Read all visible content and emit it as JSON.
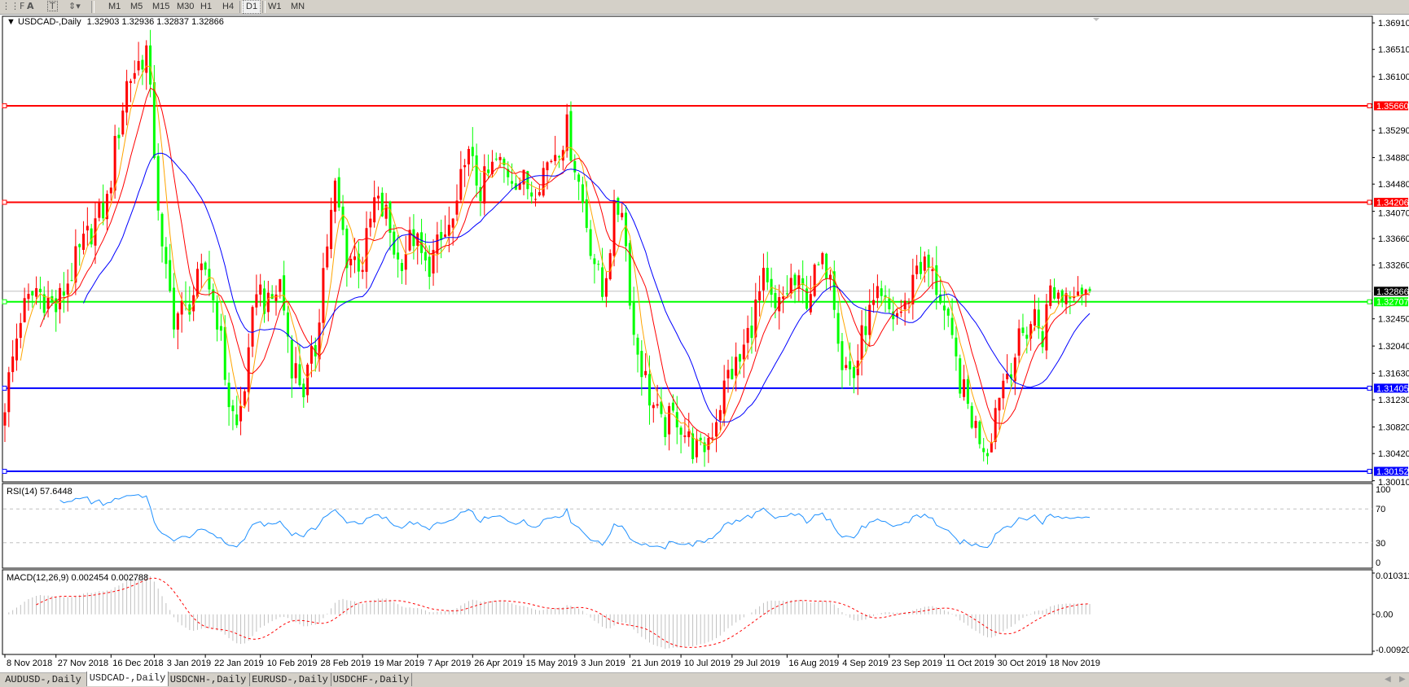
{
  "toolbar": {
    "icons": [
      "period-separator-icon",
      "text-icon",
      "text-label-icon",
      "arrows-icon"
    ],
    "timeframes": [
      "M1",
      "M5",
      "M15",
      "M30",
      "H1",
      "H4",
      "D1",
      "W1",
      "MN"
    ],
    "active_timeframe": "D1"
  },
  "header": {
    "symbol": "USDCAD-,Daily",
    "ohlc": "1.32903 1.32936 1.32837 1.32866"
  },
  "rsi_label": "RSI(14) 57.6448",
  "macd_label": "MACD(12,26,9) 0.002454 0.002788",
  "tabs": [
    "AUDUSD-,Daily",
    "USDCAD-,Daily",
    "USDCNH-,Daily",
    "EURUSD-,Daily",
    "USDCHF-,Daily"
  ],
  "active_tab": "USDCAD-,Daily",
  "chart_data": {
    "type": "candlestick",
    "symbol": "USDCAD",
    "timeframe": "Daily",
    "ylim": [
      1.29993,
      1.37009
    ],
    "y_ticks": [
      "1.36910",
      "1.36510",
      "1.36100",
      "1.35290",
      "1.34880",
      "1.34480",
      "1.34070",
      "1.33660",
      "1.33260",
      "1.32450",
      "1.32040",
      "1.31630",
      "1.31230",
      "1.30820",
      "1.30420",
      "1.30010"
    ],
    "x_ticks": [
      {
        "date": "2018-11-08",
        "label": "8 Nov 2018"
      },
      {
        "date": "2018-11-27",
        "label": "27 Nov 2018"
      },
      {
        "date": "2018-12-16",
        "label": "16 Dec 2018"
      },
      {
        "date": "2019-01-03",
        "label": "3 Jan 2019"
      },
      {
        "date": "2019-01-22",
        "label": "22 Jan 2019"
      },
      {
        "date": "2019-02-10",
        "label": "10 Feb 2019"
      },
      {
        "date": "2019-02-28",
        "label": "28 Feb 2019"
      },
      {
        "date": "2019-03-19",
        "label": "19 Mar 2019"
      },
      {
        "date": "2019-04-07",
        "label": "7 Apr 2019"
      },
      {
        "date": "2019-04-26",
        "label": "26 Apr 2019"
      },
      {
        "date": "2019-05-15",
        "label": "15 May 2019"
      },
      {
        "date": "2019-06-03",
        "label": "3 Jun 2019"
      },
      {
        "date": "2019-06-21",
        "label": "21 Jun 2019"
      },
      {
        "date": "2019-07-10",
        "label": "10 Jul 2019"
      },
      {
        "date": "2019-07-29",
        "label": "29 Jul 2019"
      },
      {
        "date": "2019-08-16",
        "label": "16 Aug 2019"
      },
      {
        "date": "2019-09-04",
        "label": "4 Sep 2019"
      },
      {
        "date": "2019-09-23",
        "label": "23 Sep 2019"
      },
      {
        "date": "2019-10-11",
        "label": "11 Oct 2019"
      },
      {
        "date": "2019-10-30",
        "label": "30 Oct 2019"
      },
      {
        "date": "2019-11-18",
        "label": "18 Nov 2019"
      }
    ],
    "close_path": [
      [
        "2018-11-08",
        1.312
      ],
      [
        "2018-11-14",
        1.325
      ],
      [
        "2018-11-20",
        1.329
      ],
      [
        "2018-11-27",
        1.326
      ],
      [
        "2018-12-04",
        1.333
      ],
      [
        "2018-12-10",
        1.338
      ],
      [
        "2018-12-14",
        1.342
      ],
      [
        "2018-12-18",
        1.35
      ],
      [
        "2018-12-21",
        1.36
      ],
      [
        "2018-12-26",
        1.362
      ],
      [
        "2018-12-31",
        1.365
      ],
      [
        "2019-01-03",
        1.35
      ],
      [
        "2019-01-07",
        1.334
      ],
      [
        "2019-01-10",
        1.325
      ],
      [
        "2019-01-15",
        1.326
      ],
      [
        "2019-01-22",
        1.332
      ],
      [
        "2019-01-25",
        1.325
      ],
      [
        "2019-01-30",
        1.312
      ],
      [
        "2019-02-01",
        1.308
      ],
      [
        "2019-02-06",
        1.318
      ],
      [
        "2019-02-08",
        1.33
      ],
      [
        "2019-02-13",
        1.326
      ],
      [
        "2019-02-18",
        1.33
      ],
      [
        "2019-02-21",
        1.318
      ],
      [
        "2019-02-26",
        1.314
      ],
      [
        "2019-03-01",
        1.32
      ],
      [
        "2019-03-05",
        1.332
      ],
      [
        "2019-03-08",
        1.344
      ],
      [
        "2019-03-13",
        1.334
      ],
      [
        "2019-03-19",
        1.333
      ],
      [
        "2019-03-22",
        1.342
      ],
      [
        "2019-03-27",
        1.34
      ],
      [
        "2019-04-01",
        1.333
      ],
      [
        "2019-04-05",
        1.337
      ],
      [
        "2019-04-10",
        1.332
      ],
      [
        "2019-04-16",
        1.336
      ],
      [
        "2019-04-22",
        1.34
      ],
      [
        "2019-04-24",
        1.35
      ],
      [
        "2019-04-30",
        1.344
      ],
      [
        "2019-05-06",
        1.348
      ],
      [
        "2019-05-13",
        1.346
      ],
      [
        "2019-05-17",
        1.344
      ],
      [
        "2019-05-23",
        1.348
      ],
      [
        "2019-05-30",
        1.353
      ],
      [
        "2019-06-03",
        1.348
      ],
      [
        "2019-06-07",
        1.336
      ],
      [
        "2019-06-12",
        1.328
      ],
      [
        "2019-06-17",
        1.34
      ],
      [
        "2019-06-19",
        1.342
      ],
      [
        "2019-06-24",
        1.322
      ],
      [
        "2019-06-28",
        1.313
      ],
      [
        "2019-07-03",
        1.308
      ],
      [
        "2019-07-09",
        1.31
      ],
      [
        "2019-07-12",
        1.306
      ],
      [
        "2019-07-17",
        1.304
      ],
      [
        "2019-07-22",
        1.308
      ],
      [
        "2019-07-26",
        1.316
      ],
      [
        "2019-07-31",
        1.318
      ],
      [
        "2019-08-05",
        1.324
      ],
      [
        "2019-08-08",
        1.33
      ],
      [
        "2019-08-13",
        1.325
      ],
      [
        "2019-08-19",
        1.33
      ],
      [
        "2019-08-23",
        1.328
      ],
      [
        "2019-08-28",
        1.332
      ],
      [
        "2019-09-02",
        1.333
      ],
      [
        "2019-09-05",
        1.318
      ],
      [
        "2019-09-10",
        1.316
      ],
      [
        "2019-09-13",
        1.324
      ],
      [
        "2019-09-18",
        1.327
      ],
      [
        "2019-09-24",
        1.325
      ],
      [
        "2019-09-27",
        1.326
      ],
      [
        "2019-10-02",
        1.333
      ],
      [
        "2019-10-07",
        1.332
      ],
      [
        "2019-10-10",
        1.328
      ],
      [
        "2019-10-15",
        1.32
      ],
      [
        "2019-10-18",
        1.313
      ],
      [
        "2019-10-23",
        1.308
      ],
      [
        "2019-10-28",
        1.305
      ],
      [
        "2019-10-31",
        1.314
      ],
      [
        "2019-11-05",
        1.318
      ],
      [
        "2019-11-08",
        1.322
      ],
      [
        "2019-11-13",
        1.325
      ],
      [
        "2019-11-15",
        1.322
      ],
      [
        "2019-11-19",
        1.329
      ],
      [
        "2019-11-22",
        1.328
      ],
      [
        "2019-11-27",
        1.33
      ],
      [
        "2019-12-03",
        1.32866
      ]
    ],
    "last_bar": {
      "open": 1.32903,
      "high": 1.32936,
      "low": 1.32837,
      "close": 1.32866
    },
    "current_price": {
      "value": "1.32866",
      "color": "#000000"
    },
    "levels": [
      {
        "value": "1.35660",
        "color": "#ff0000"
      },
      {
        "value": "1.34206",
        "color": "#ff0000"
      },
      {
        "value": "1.32707",
        "color": "#00ff00"
      },
      {
        "value": "1.31405",
        "color": "#0000ff"
      },
      {
        "value": "1.30152",
        "color": "#0000ff"
      }
    ],
    "candle_colors": {
      "up": "#ff0000",
      "down": "#00ff00"
    },
    "moving_averages": [
      {
        "period": 5,
        "color": "#ffa500"
      },
      {
        "period": 10,
        "color": "#ff0000"
      },
      {
        "period": 21,
        "color": "#0000ff"
      }
    ],
    "rsi": {
      "period": 14,
      "color": "#1e90ff",
      "levels": [
        70,
        30
      ],
      "ticks": [
        "100",
        "70",
        "30",
        "0"
      ],
      "ylim": [
        0,
        100
      ]
    },
    "macd": {
      "fast": 12,
      "slow": 26,
      "signal": 9,
      "hist_color": "#c0c0c0",
      "signal_color": "#ff0000",
      "ticks": [
        "0.010311",
        "0.00",
        "-0.009203"
      ],
      "ylim": [
        -0.009203,
        0.010311
      ]
    }
  }
}
